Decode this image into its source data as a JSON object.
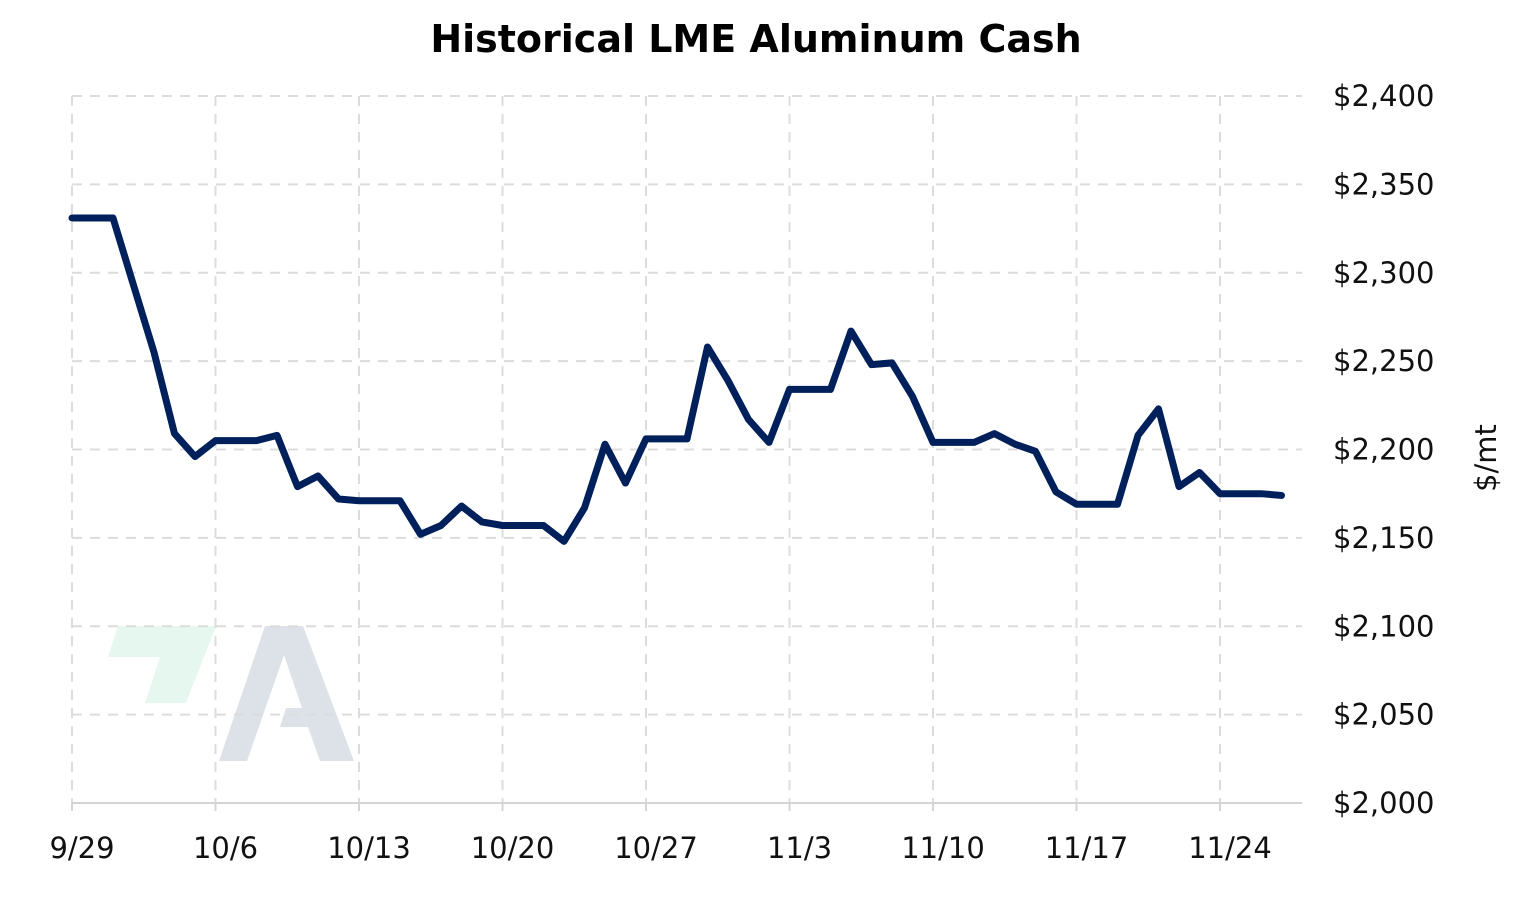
{
  "chart_data": {
    "type": "line",
    "title": "Historical LME Aluminum Cash",
    "xlabel": "",
    "ylabel": "$/mt",
    "ylim": [
      2000,
      2400
    ],
    "yticks": [
      2000,
      2050,
      2100,
      2150,
      2200,
      2250,
      2300,
      2350,
      2400
    ],
    "ytick_labels": [
      "$2,000",
      "$2,050",
      "$2,100",
      "$2,150",
      "$2,200",
      "$2,250",
      "$2,300",
      "$2,350",
      "$2,400"
    ],
    "xlim": [
      "2025-09-29",
      "2025-11-28"
    ],
    "xticks": [
      "2025-09-29",
      "2025-10-06",
      "2025-10-13",
      "2025-10-20",
      "2025-10-27",
      "2025-11-03",
      "2025-11-10",
      "2025-11-17",
      "2025-11-24"
    ],
    "xtick_labels": [
      "9/29",
      "10/6",
      "10/13",
      "10/20",
      "10/27",
      "11/3",
      "11/10",
      "11/17",
      "11/24"
    ],
    "grid": true,
    "y_axis_side": "right",
    "series": [
      {
        "color": "#00205b",
        "points": [
          [
            "2025-09-29",
            2331
          ],
          [
            "2025-09-30",
            2331
          ],
          [
            "2025-10-01",
            2331
          ],
          [
            "2025-10-02",
            2293
          ],
          [
            "2025-10-03",
            2255
          ],
          [
            "2025-10-04",
            2209
          ],
          [
            "2025-10-05",
            2196
          ],
          [
            "2025-10-06",
            2205
          ],
          [
            "2025-10-07",
            2205
          ],
          [
            "2025-10-08",
            2205
          ],
          [
            "2025-10-09",
            2208
          ],
          [
            "2025-10-10",
            2179
          ],
          [
            "2025-10-11",
            2185
          ],
          [
            "2025-10-12",
            2172
          ],
          [
            "2025-10-13",
            2171
          ],
          [
            "2025-10-14",
            2171
          ],
          [
            "2025-10-15",
            2171
          ],
          [
            "2025-10-16",
            2152
          ],
          [
            "2025-10-17",
            2157
          ],
          [
            "2025-10-18",
            2168
          ],
          [
            "2025-10-19",
            2159
          ],
          [
            "2025-10-20",
            2157
          ],
          [
            "2025-10-21",
            2157
          ],
          [
            "2025-10-22",
            2157
          ],
          [
            "2025-10-23",
            2148
          ],
          [
            "2025-10-24",
            2167
          ],
          [
            "2025-10-25",
            2203
          ],
          [
            "2025-10-26",
            2181
          ],
          [
            "2025-10-27",
            2206
          ],
          [
            "2025-10-28",
            2206
          ],
          [
            "2025-10-29",
            2206
          ],
          [
            "2025-10-30",
            2258
          ],
          [
            "2025-10-31",
            2239
          ],
          [
            "2025-11-01",
            2217
          ],
          [
            "2025-11-02",
            2204
          ],
          [
            "2025-11-03",
            2234
          ],
          [
            "2025-11-04",
            2234
          ],
          [
            "2025-11-05",
            2234
          ],
          [
            "2025-11-06",
            2267
          ],
          [
            "2025-11-07",
            2248
          ],
          [
            "2025-11-08",
            2249
          ],
          [
            "2025-11-09",
            2230
          ],
          [
            "2025-11-10",
            2204
          ],
          [
            "2025-11-11",
            2204
          ],
          [
            "2025-11-12",
            2204
          ],
          [
            "2025-11-13",
            2209
          ],
          [
            "2025-11-14",
            2203
          ],
          [
            "2025-11-15",
            2199
          ],
          [
            "2025-11-16",
            2176
          ],
          [
            "2025-11-17",
            2169
          ],
          [
            "2025-11-18",
            2169
          ],
          [
            "2025-11-19",
            2169
          ],
          [
            "2025-11-20",
            2208
          ],
          [
            "2025-11-21",
            2223
          ],
          [
            "2025-11-22",
            2179
          ],
          [
            "2025-11-23",
            2187
          ],
          [
            "2025-11-24",
            2175
          ],
          [
            "2025-11-25",
            2175
          ],
          [
            "2025-11-26",
            2175
          ],
          [
            "2025-11-27",
            2174
          ]
        ]
      }
    ]
  },
  "watermark": {
    "colors": [
      "#e6f7ef",
      "#dde1e8"
    ]
  }
}
